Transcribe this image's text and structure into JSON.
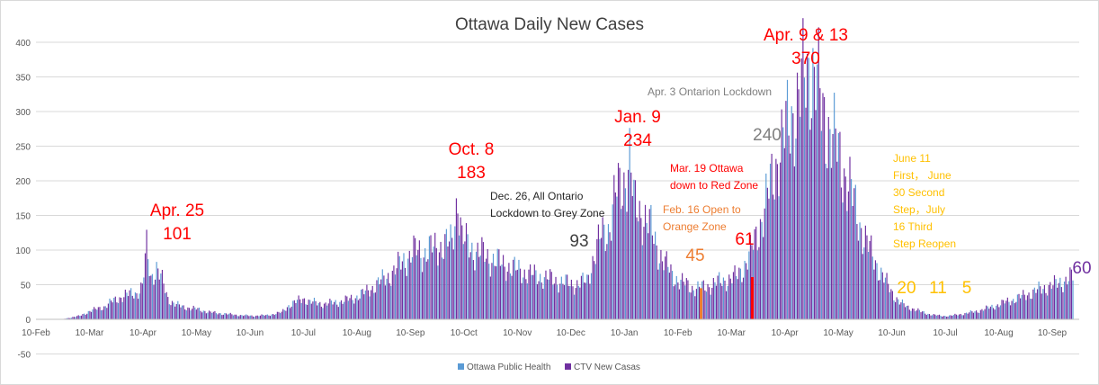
{
  "chart_data": {
    "type": "bar",
    "title": "Ottawa Daily New Cases",
    "xlabel": "",
    "ylabel": "",
    "ylim": [
      -50,
      400
    ],
    "yticks": [
      "400",
      "350",
      "300",
      "250",
      "200",
      "150",
      "100",
      "50",
      "0",
      "-50"
    ],
    "grid": true,
    "legend_position": "bottom",
    "series": [
      {
        "name": "Ottawa Public Health",
        "color": "#5b9bd5"
      },
      {
        "name": "CTV New Casas",
        "color": "#7030a0"
      }
    ],
    "months": [
      "10-Feb",
      "10-Mar",
      "10-Apr",
      "10-May",
      "10-Jun",
      "10-Jul",
      "10-Aug",
      "10-Sep",
      "10-Oct",
      "10-Nov",
      "10-Dec",
      "10-Jan",
      "10-Feb",
      "10-Mar",
      "10-Apr",
      "10-May",
      "10-Jun",
      "10-Jul",
      "10-Aug",
      "10-Sep"
    ],
    "highlight_bars": [
      {
        "label": "Feb. 16",
        "value": 45,
        "color": "#ed7d31"
      },
      {
        "label": "Mar. 19",
        "value": 61,
        "color": "#ff0000"
      }
    ],
    "annotations": [
      {
        "id": "apr25",
        "lines": [
          "Apr. 25",
          "101"
        ],
        "color": "#ff0000",
        "size": 19
      },
      {
        "id": "oct8",
        "lines": [
          "Oct. 8",
          "183"
        ],
        "color": "#ff0000",
        "size": 19
      },
      {
        "id": "dec26",
        "lines": [
          "Dec. 26, All Ontario",
          "Lockdown to Grey Zone"
        ],
        "color": "#262626",
        "size": 12
      },
      {
        "id": "v93",
        "lines": [
          "93"
        ],
        "color": "#404040",
        "size": 19
      },
      {
        "id": "jan9",
        "lines": [
          "Jan. 9",
          "234"
        ],
        "color": "#ff0000",
        "size": 19
      },
      {
        "id": "feb16",
        "lines": [
          "Feb. 16 Open to",
          "Orange Zone"
        ],
        "color": "#ed7d31",
        "size": 12
      },
      {
        "id": "v45",
        "lines": [
          "45"
        ],
        "color": "#ed7d31",
        "size": 19
      },
      {
        "id": "mar19",
        "lines": [
          "Mar. 19 Ottawa",
          "down to Red Zone"
        ],
        "color": "#ff0000",
        "size": 12
      },
      {
        "id": "v61",
        "lines": [
          "61"
        ],
        "color": "#ff0000",
        "size": 19
      },
      {
        "id": "v240",
        "lines": [
          "240"
        ],
        "color": "#7f7f7f",
        "size": 19
      },
      {
        "id": "apr3",
        "lines": [
          "Apr. 3 Ontarion Lockdown"
        ],
        "color": "#7f7f7f",
        "size": 12
      },
      {
        "id": "apr913",
        "lines": [
          "Apr. 9 & 13",
          "370"
        ],
        "color": "#ff0000",
        "size": 19
      },
      {
        "id": "june11",
        "lines": [
          "June 11",
          "First， June",
          "30 Second",
          "Step，July",
          "16 Third",
          "Step Reopen"
        ],
        "color": "#ffc000",
        "size": 12
      },
      {
        "id": "v20",
        "lines": [
          "20"
        ],
        "color": "#ffc000",
        "size": 19
      },
      {
        "id": "v11",
        "lines": [
          "11"
        ],
        "color": "#ffc000",
        "size": 19
      },
      {
        "id": "v5",
        "lines": [
          "5"
        ],
        "color": "#ffc000",
        "size": 19
      },
      {
        "id": "v60",
        "lines": [
          "60"
        ],
        "color": "#7030a0",
        "size": 19
      }
    ],
    "profile": [
      [
        0,
        0
      ],
      [
        15,
        0
      ],
      [
        20,
        2
      ],
      [
        28,
        5
      ],
      [
        35,
        12
      ],
      [
        40,
        15
      ],
      [
        45,
        18
      ],
      [
        50,
        25
      ],
      [
        55,
        30
      ],
      [
        60,
        35
      ],
      [
        68,
        38
      ],
      [
        72,
        48
      ],
      [
        75,
        101
      ],
      [
        78,
        60
      ],
      [
        82,
        75
      ],
      [
        86,
        55
      ],
      [
        90,
        30
      ],
      [
        95,
        22
      ],
      [
        100,
        18
      ],
      [
        110,
        15
      ],
      [
        120,
        10
      ],
      [
        130,
        8
      ],
      [
        140,
        6
      ],
      [
        150,
        5
      ],
      [
        160,
        6
      ],
      [
        170,
        10
      ],
      [
        175,
        20
      ],
      [
        180,
        25
      ],
      [
        185,
        30
      ],
      [
        190,
        25
      ],
      [
        200,
        22
      ],
      [
        210,
        25
      ],
      [
        220,
        30
      ],
      [
        230,
        40
      ],
      [
        240,
        55
      ],
      [
        250,
        70
      ],
      [
        255,
        85
      ],
      [
        260,
        90
      ],
      [
        265,
        100
      ],
      [
        270,
        95
      ],
      [
        280,
        105
      ],
      [
        290,
        110
      ],
      [
        294,
        183
      ],
      [
        297,
        115
      ],
      [
        305,
        100
      ],
      [
        315,
        90
      ],
      [
        325,
        80
      ],
      [
        335,
        72
      ],
      [
        345,
        65
      ],
      [
        355,
        60
      ],
      [
        365,
        55
      ],
      [
        375,
        50
      ],
      [
        385,
        55
      ],
      [
        390,
        93
      ],
      [
        395,
        120
      ],
      [
        400,
        130
      ],
      [
        405,
        180
      ],
      [
        410,
        190
      ],
      [
        415,
        234
      ],
      [
        418,
        165
      ],
      [
        425,
        150
      ],
      [
        430,
        130
      ],
      [
        435,
        100
      ],
      [
        440,
        80
      ],
      [
        445,
        65
      ],
      [
        450,
        55
      ],
      [
        455,
        50
      ],
      [
        460,
        45
      ],
      [
        465,
        45
      ],
      [
        470,
        48
      ],
      [
        475,
        52
      ],
      [
        480,
        55
      ],
      [
        485,
        58
      ],
      [
        490,
        61
      ],
      [
        495,
        75
      ],
      [
        500,
        95
      ],
      [
        505,
        125
      ],
      [
        510,
        160
      ],
      [
        515,
        200
      ],
      [
        520,
        240
      ],
      [
        525,
        270
      ],
      [
        530,
        300
      ],
      [
        534,
        315
      ],
      [
        538,
        345
      ],
      [
        542,
        370
      ],
      [
        546,
        350
      ],
      [
        550,
        300
      ],
      [
        555,
        280
      ],
      [
        560,
        250
      ],
      [
        565,
        220
      ],
      [
        570,
        190
      ],
      [
        575,
        150
      ],
      [
        580,
        120
      ],
      [
        585,
        95
      ],
      [
        590,
        75
      ],
      [
        595,
        55
      ],
      [
        600,
        38
      ],
      [
        605,
        25
      ],
      [
        610,
        18
      ],
      [
        615,
        15
      ],
      [
        620,
        11
      ],
      [
        625,
        8
      ],
      [
        630,
        6
      ],
      [
        635,
        5
      ],
      [
        640,
        5
      ],
      [
        650,
        8
      ],
      [
        660,
        12
      ],
      [
        670,
        18
      ],
      [
        680,
        25
      ],
      [
        690,
        32
      ],
      [
        700,
        40
      ],
      [
        710,
        48
      ],
      [
        715,
        50
      ],
      [
        720,
        55
      ],
      [
        725,
        60
      ],
      [
        727,
        60
      ]
    ]
  }
}
